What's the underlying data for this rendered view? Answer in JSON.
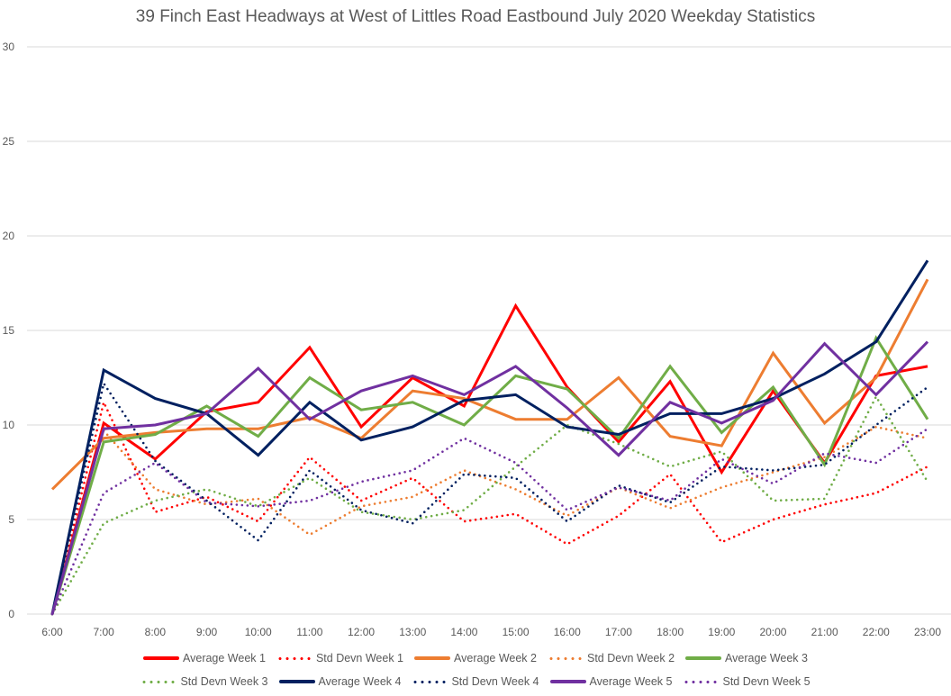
{
  "chart_data": {
    "type": "line",
    "title": "39 Finch East Headways at West of Littles Road Eastbound July 2020 Weekday Statistics",
    "xlabel": "",
    "ylabel": "",
    "ylim": [
      0,
      30
    ],
    "yticks": [
      0,
      5,
      10,
      15,
      20,
      25,
      30
    ],
    "grid": "horizontal",
    "legend_position": "bottom",
    "categories": [
      "6:00",
      "7:00",
      "8:00",
      "9:00",
      "10:00",
      "11:00",
      "12:00",
      "13:00",
      "14:00",
      "15:00",
      "16:00",
      "17:00",
      "18:00",
      "19:00",
      "20:00",
      "21:00",
      "22:00",
      "23:00"
    ],
    "series": [
      {
        "name": "Average Week 1",
        "color": "#ff0000",
        "style": "solid",
        "values": [
          0,
          10.1,
          8.2,
          10.7,
          11.2,
          14.1,
          9.9,
          12.5,
          11.0,
          16.3,
          12.0,
          9.1,
          12.3,
          7.5,
          11.8,
          8.0,
          12.6,
          13.1
        ]
      },
      {
        "name": "Std Devn Week 1",
        "color": "#ff0000",
        "style": "dotted",
        "values": [
          0,
          11.2,
          5.4,
          6.2,
          4.9,
          8.3,
          6.0,
          7.2,
          4.9,
          5.3,
          3.7,
          5.2,
          7.4,
          3.8,
          5.0,
          5.8,
          6.4,
          7.8
        ]
      },
      {
        "name": "Average Week 2",
        "color": "#ed7d31",
        "style": "solid",
        "values": [
          6.6,
          9.3,
          9.6,
          9.8,
          9.8,
          10.4,
          9.3,
          11.8,
          11.4,
          10.3,
          10.3,
          12.5,
          9.4,
          8.9,
          13.8,
          10.1,
          12.5,
          17.7
        ]
      },
      {
        "name": "Std Devn Week 2",
        "color": "#ed7d31",
        "style": "dotted",
        "values": [
          null,
          9.7,
          6.6,
          5.8,
          6.1,
          4.2,
          5.7,
          6.2,
          7.6,
          6.6,
          5.2,
          6.7,
          5.6,
          6.7,
          7.5,
          8.3,
          9.9,
          9.3
        ]
      },
      {
        "name": "Average Week 3",
        "color": "#70ad47",
        "style": "solid",
        "values": [
          0,
          9.1,
          9.5,
          11.0,
          9.4,
          12.5,
          10.8,
          11.2,
          10.0,
          12.6,
          11.9,
          9.3,
          13.1,
          9.6,
          12.0,
          7.9,
          14.6,
          10.3
        ]
      },
      {
        "name": "Std Devn Week 3",
        "color": "#70ad47",
        "style": "dotted",
        "values": [
          0,
          4.8,
          6.0,
          6.6,
          5.7,
          7.2,
          5.4,
          5.0,
          5.5,
          7.8,
          10.0,
          9.0,
          7.8,
          8.6,
          6.0,
          6.1,
          11.5,
          7.0
        ]
      },
      {
        "name": "Average Week 4",
        "color": "#002060",
        "style": "solid",
        "values": [
          0,
          12.9,
          11.4,
          10.6,
          8.4,
          11.2,
          9.2,
          9.9,
          11.3,
          11.6,
          9.9,
          9.5,
          10.6,
          10.6,
          11.4,
          12.7,
          14.4,
          18.7
        ]
      },
      {
        "name": "Std Devn Week 4",
        "color": "#002060",
        "style": "dotted",
        "values": [
          0,
          12.2,
          8.1,
          6.0,
          3.9,
          7.6,
          5.5,
          4.8,
          7.4,
          7.2,
          4.9,
          6.8,
          5.9,
          7.8,
          7.6,
          7.9,
          10.0,
          12.0
        ]
      },
      {
        "name": "Average Week 5",
        "color": "#7030a0",
        "style": "solid",
        "values": [
          0,
          9.8,
          10.0,
          10.6,
          13.0,
          10.3,
          11.8,
          12.6,
          11.6,
          13.1,
          10.9,
          8.4,
          11.2,
          10.1,
          11.3,
          14.3,
          11.6,
          14.4
        ]
      },
      {
        "name": "Std Devn Week 5",
        "color": "#7030a0",
        "style": "dotted",
        "values": [
          0,
          6.4,
          8.0,
          5.9,
          5.7,
          6.0,
          7.0,
          7.6,
          9.3,
          8.0,
          5.5,
          6.7,
          6.0,
          8.2,
          6.9,
          8.5,
          8.0,
          9.8
        ]
      }
    ]
  }
}
